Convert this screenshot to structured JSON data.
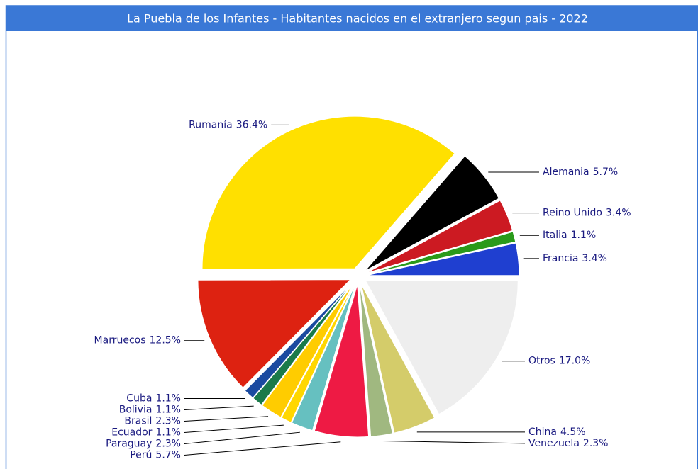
{
  "chart_data": {
    "type": "pie",
    "title": "La Puebla de los Infantes - Habitantes nacidos en el extranjero segun pais - 2022",
    "categories": [
      "Francia",
      "Italia",
      "Reino Unido",
      "Alemania",
      "Rumanía",
      "Marruecos",
      "Cuba",
      "Bolivia",
      "Brasil",
      "Ecuador",
      "Paraguay",
      "Perú",
      "Venezuela",
      "China",
      "Otros"
    ],
    "values": [
      3.4,
      1.1,
      3.4,
      5.7,
      36.4,
      12.5,
      1.1,
      1.1,
      2.3,
      1.1,
      2.3,
      5.7,
      2.3,
      4.5,
      17.0
    ],
    "value_labels": [
      "3.4%",
      "1.1%",
      "3.4%",
      "5.7%",
      "36.4%",
      "12.5%",
      "1.1%",
      "1.1%",
      "2.3%",
      "1.1%",
      "2.3%",
      "5.7%",
      "2.3%",
      "4.5%",
      "17.0%"
    ],
    "colors": [
      "#1f3fd0",
      "#2a9a1a",
      "#cc1a22",
      "#000000",
      "#ffe000",
      "#dd2211",
      "#1a4aa0",
      "#1a7a4a",
      "#ffcc00",
      "#ffd700",
      "#66c0c0",
      "#ee1a44",
      "#a0b880",
      "#d4cc6a",
      "#eeeeee"
    ]
  }
}
